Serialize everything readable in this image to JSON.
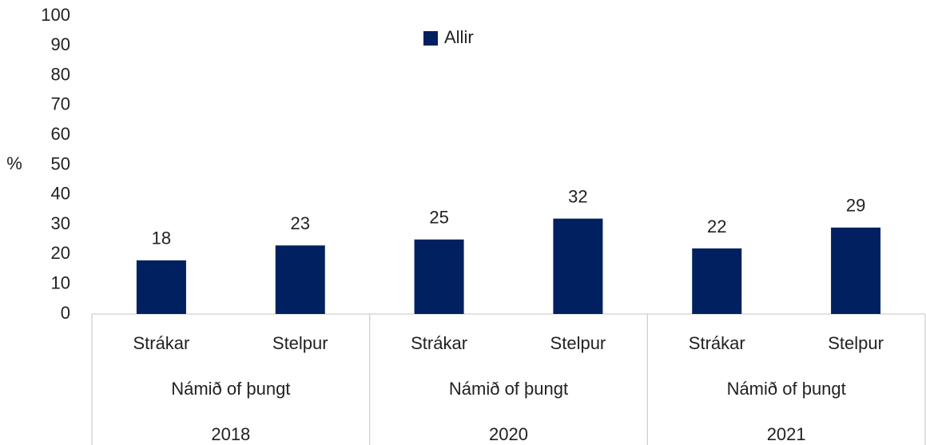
{
  "chart_data": {
    "type": "bar",
    "y_label": "%",
    "categories": [
      "Strákar",
      "Stelpur",
      "Strákar",
      "Stelpur",
      "Strákar",
      "Stelpur"
    ],
    "subgroups": [
      "Námið of þungt",
      "Námið of þungt",
      "Námið of þungt"
    ],
    "groups": [
      "2018",
      "2020",
      "2021"
    ],
    "series": [
      {
        "name": "Allir",
        "color": "#002060",
        "values": [
          18,
          23,
          25,
          32,
          22,
          29
        ]
      }
    ],
    "ylim": [
      0,
      100
    ],
    "yticks": [
      0,
      10,
      20,
      30,
      40,
      50,
      60,
      70,
      80,
      90,
      100
    ],
    "grid": false,
    "legend": "top"
  }
}
